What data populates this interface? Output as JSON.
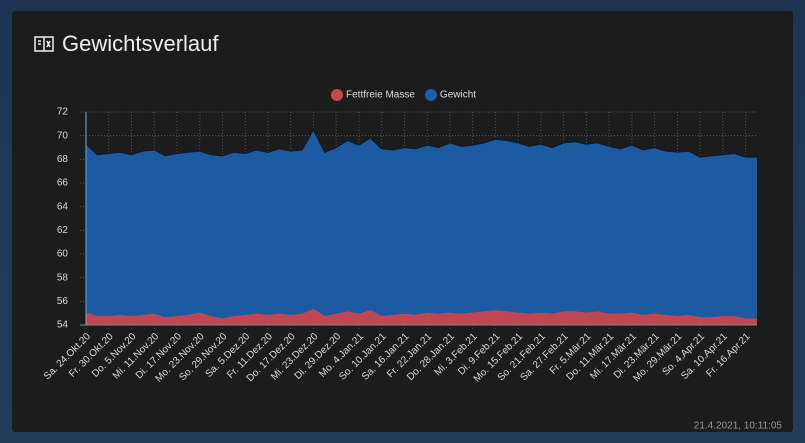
{
  "card": {
    "title": "Gewichtsverlauf",
    "timestamp": "21.4.2021, 10:11:05"
  },
  "chart_data": {
    "type": "area",
    "legend": "top",
    "grid": true,
    "categories": [
      "Sa. 24.Okt.20",
      null,
      "Fr. 30.Okt.20",
      null,
      "Do. 5.Nov.20",
      null,
      "Mi. 11.Nov.20",
      null,
      "Di. 17.Nov.20",
      null,
      "Mo. 23.Nov.20",
      null,
      "So. 29.Nov.20",
      null,
      "Sa. 5.Dez.20",
      null,
      "Fr. 11.Dez.20",
      null,
      "Do. 17.Dez.20",
      null,
      "Mi. 23.Dez.20",
      null,
      "Di. 29.Dez.20",
      null,
      "Mo. 4.Jan.21",
      null,
      "So. 10.Jan.21",
      null,
      "Sa. 16.Jan.21",
      null,
      "Fr. 22.Jan.21",
      null,
      "Do. 28.Jan.21",
      null,
      "Mi. 3.Feb.21",
      null,
      "Di. 9.Feb.21",
      null,
      "Mo. 15.Feb.21",
      null,
      "So. 21.Feb.21",
      null,
      "Sa. 27.Feb.21",
      null,
      "Fr. 5.Mär.21",
      null,
      "Do. 11.Mär.21",
      null,
      "Mi. 17.Mär.21",
      null,
      "Di. 23.Mär.21",
      null,
      "Mo. 29.Mär.21",
      null,
      "So. 4.Apr.21",
      null,
      "Sa. 10.Apr.21",
      null,
      "Fr. 16.Apr.21",
      null
    ],
    "series": [
      {
        "name": "Fettfreie Masse",
        "color": "#c8474f",
        "values": [
          55.0,
          54.7,
          54.7,
          54.8,
          54.7,
          54.8,
          54.9,
          54.6,
          54.7,
          54.8,
          55.0,
          54.7,
          54.5,
          54.7,
          54.8,
          54.9,
          54.8,
          54.9,
          54.8,
          54.9,
          55.3,
          54.7,
          54.9,
          55.1,
          54.9,
          55.2,
          54.7,
          54.8,
          54.9,
          54.8,
          55.0,
          54.9,
          55.0,
          54.9,
          55.0,
          55.1,
          55.2,
          55.1,
          55.0,
          54.9,
          55.0,
          54.9,
          55.1,
          55.1,
          55.0,
          55.1,
          54.9,
          54.9,
          55.0,
          54.8,
          54.9,
          54.8,
          54.7,
          54.8,
          54.6,
          54.6,
          54.7,
          54.7,
          54.5,
          54.5
        ]
      },
      {
        "name": "Gewicht",
        "color": "#1c5eaa",
        "values": [
          69.3,
          68.4,
          68.5,
          68.6,
          68.4,
          68.7,
          68.8,
          68.3,
          68.5,
          68.6,
          68.7,
          68.4,
          68.3,
          68.6,
          68.5,
          68.8,
          68.6,
          68.9,
          68.7,
          68.8,
          70.5,
          68.6,
          69.0,
          69.6,
          69.2,
          69.8,
          68.9,
          68.8,
          69.0,
          68.9,
          69.2,
          69.0,
          69.4,
          69.1,
          69.2,
          69.4,
          69.7,
          69.6,
          69.4,
          69.1,
          69.3,
          69.0,
          69.4,
          69.5,
          69.3,
          69.4,
          69.1,
          68.9,
          69.2,
          68.8,
          69.0,
          68.7,
          68.6,
          68.7,
          68.2,
          68.3,
          68.4,
          68.5,
          68.2,
          68.2
        ]
      }
    ],
    "ylim": [
      54,
      72
    ],
    "yticks": [
      54,
      56,
      58,
      60,
      62,
      64,
      66,
      68,
      70,
      72
    ]
  }
}
